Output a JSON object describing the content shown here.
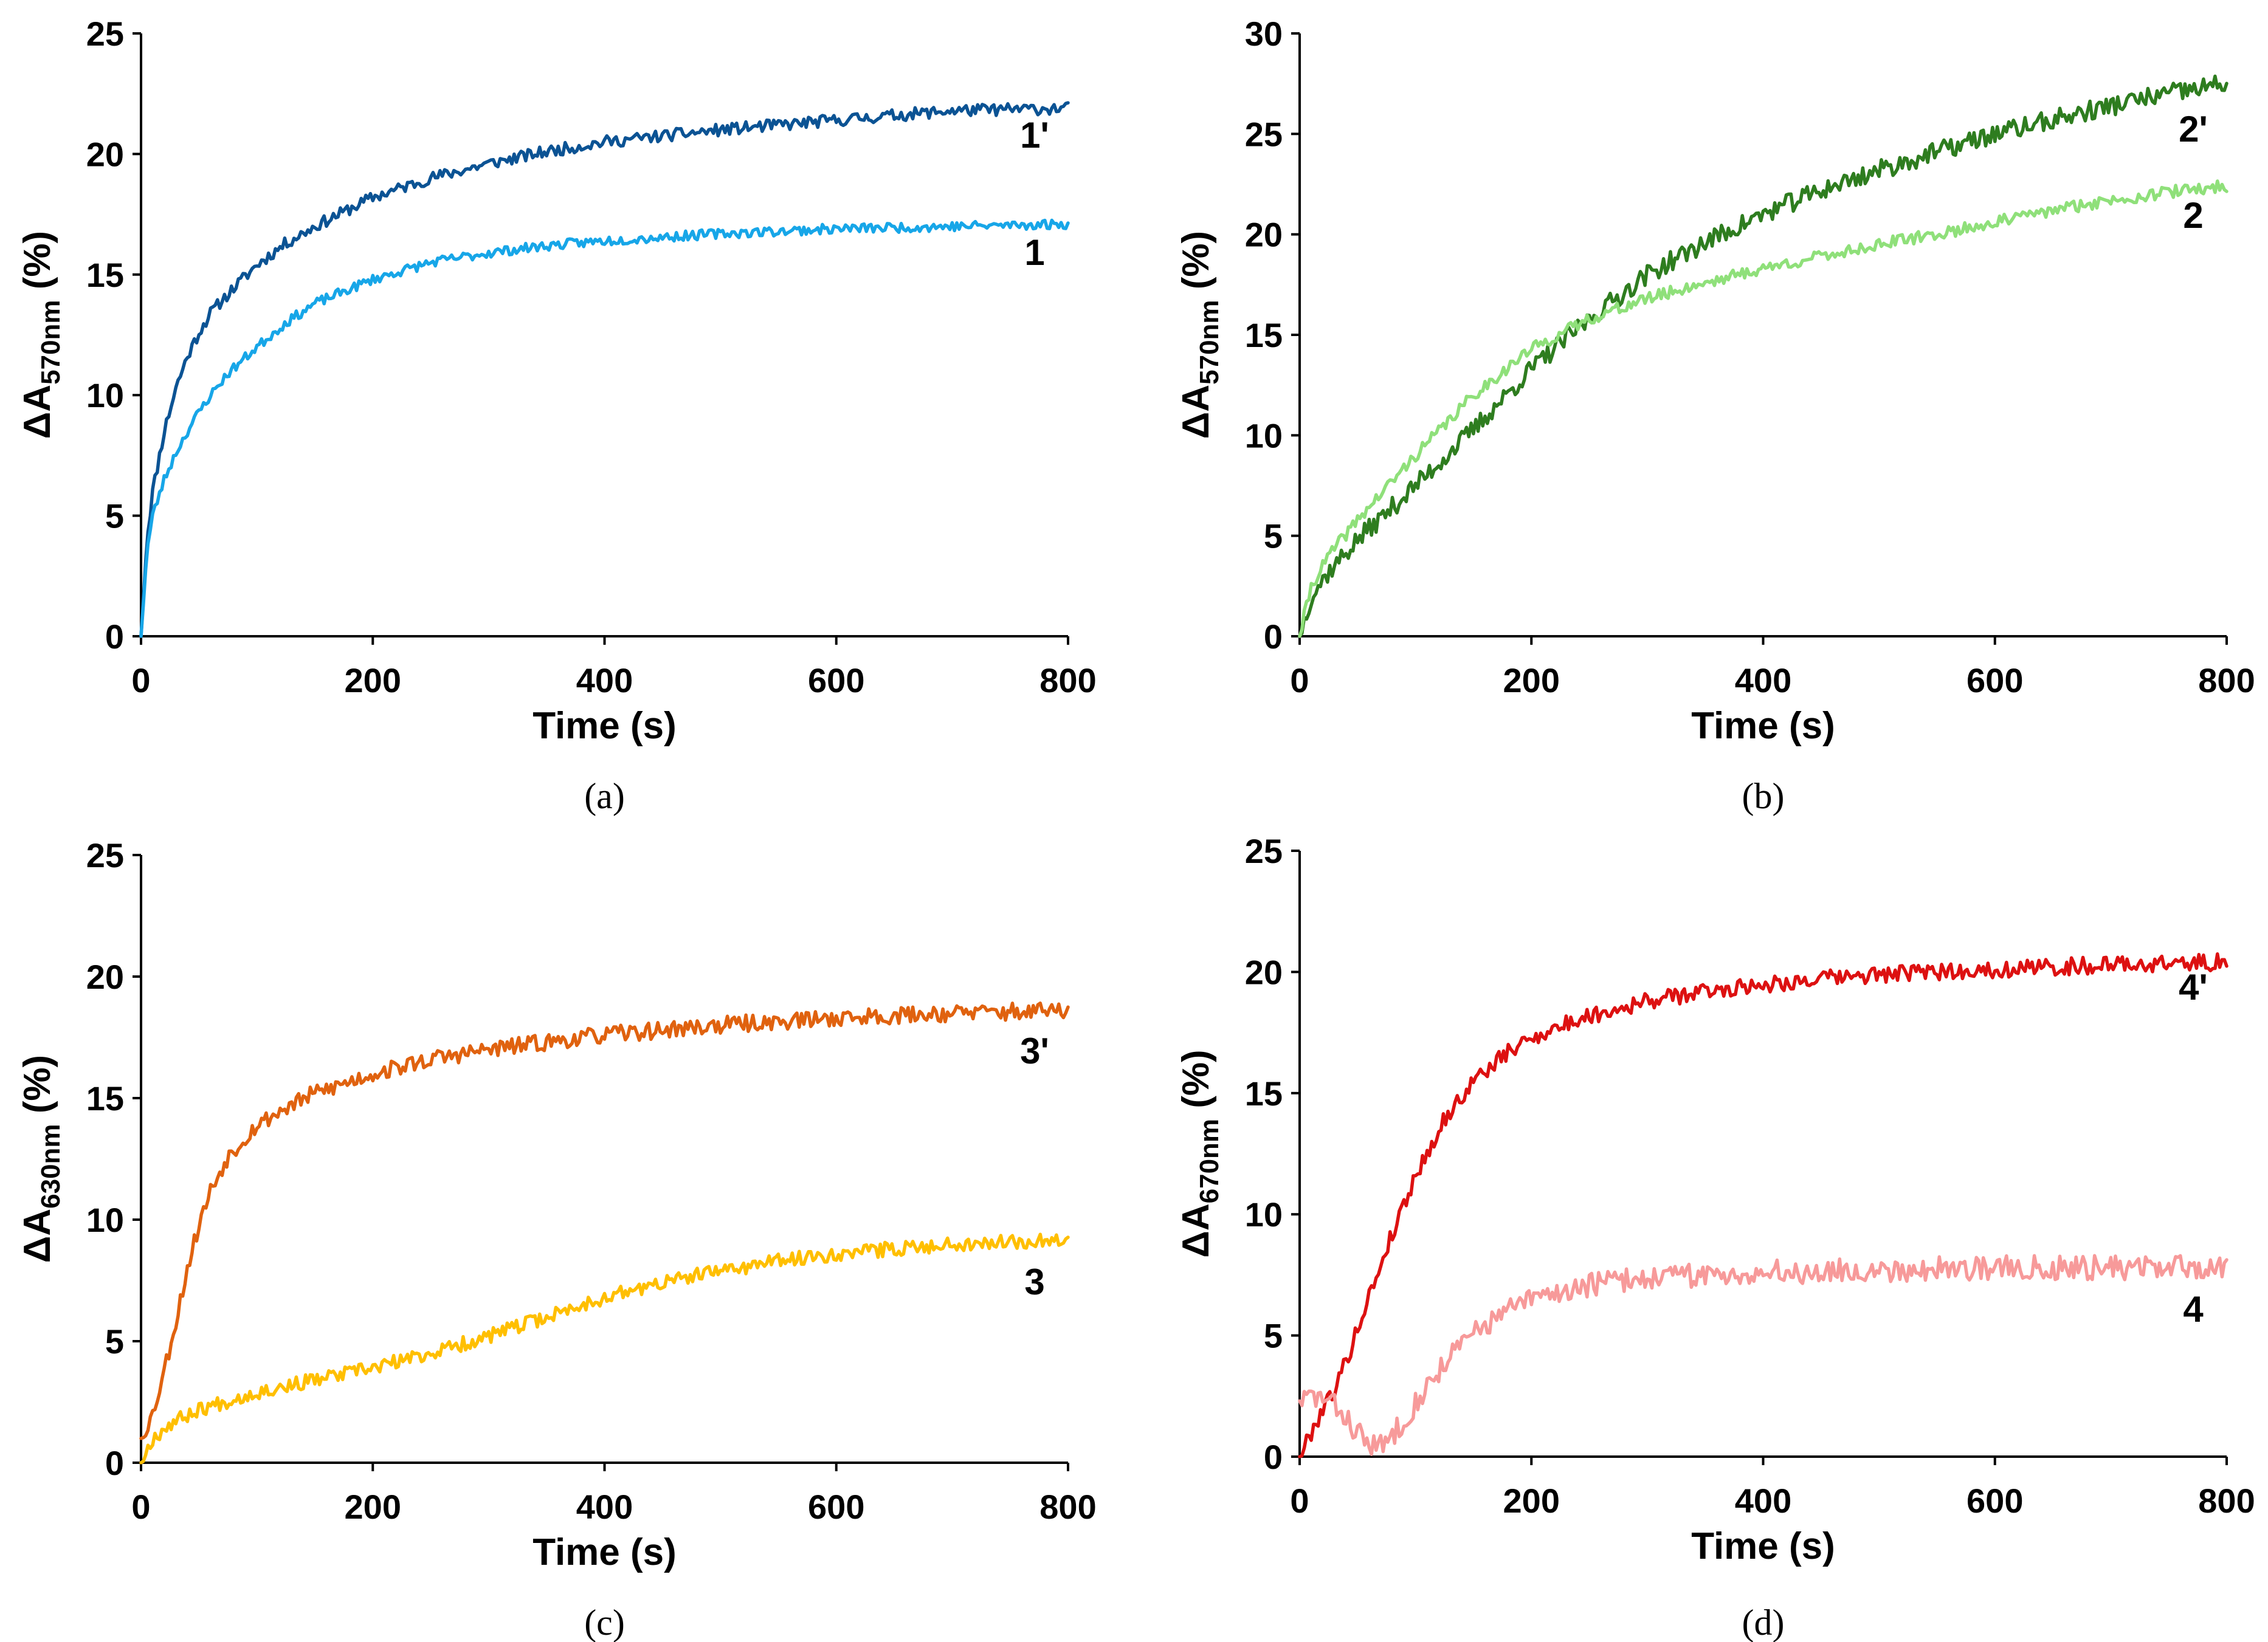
{
  "chart_data": [
    {
      "id": "a",
      "type": "line",
      "caption": "(a)",
      "xlabel": "Time (s)",
      "ylabel_main": "ΔA",
      "ylabel_sub": "570nm",
      "ylabel_unit": " (%)",
      "xlim": [
        0,
        800
      ],
      "ylim": [
        0,
        25
      ],
      "xticks": [
        "0",
        "200",
        "400",
        "600",
        "800"
      ],
      "yticks": [
        "0",
        "5",
        "10",
        "15",
        "20",
        "25"
      ],
      "grid": false,
      "series": [
        {
          "name": "1'",
          "color": "#0b5394",
          "noise": 0.25,
          "seed": 11,
          "x": [
            0,
            5,
            10,
            20,
            30,
            40,
            50,
            60,
            75,
            100,
            125,
            150,
            200,
            250,
            300,
            350,
            400,
            500,
            600,
            700,
            800
          ],
          "y": [
            0,
            4.0,
            6.0,
            8.5,
            10.3,
            11.6,
            12.6,
            13.4,
            14.2,
            15.4,
            16.3,
            17.0,
            18.2,
            19.0,
            19.6,
            20.1,
            20.5,
            21.0,
            21.4,
            21.8,
            21.9
          ]
        },
        {
          "name": "1",
          "color": "#17a6e8",
          "noise": 0.2,
          "seed": 23,
          "x": [
            0,
            5,
            10,
            20,
            30,
            40,
            50,
            60,
            75,
            100,
            125,
            150,
            200,
            250,
            300,
            350,
            400,
            500,
            600,
            700,
            800
          ],
          "y": [
            0,
            3.5,
            5.0,
            6.5,
            7.6,
            8.5,
            9.3,
            10.0,
            10.9,
            12.0,
            13.0,
            13.8,
            14.8,
            15.5,
            15.9,
            16.2,
            16.4,
            16.7,
            16.9,
            17.0,
            17.1
          ]
        }
      ],
      "annotations": [
        "1'",
        "1"
      ]
    },
    {
      "id": "b",
      "type": "line",
      "caption": "(b)",
      "xlabel": "Time (s)",
      "ylabel_main": "ΔA",
      "ylabel_sub": "570nm",
      "ylabel_unit": " (%)",
      "xlim": [
        0,
        800
      ],
      "ylim": [
        0,
        30
      ],
      "xticks": [
        "0",
        "200",
        "400",
        "600",
        "800"
      ],
      "yticks": [
        "0",
        "5",
        "10",
        "15",
        "20",
        "25",
        "30"
      ],
      "grid": false,
      "series": [
        {
          "name": "2'",
          "color": "#2e7d1f",
          "noise": 0.5,
          "seed": 37,
          "x": [
            0,
            10,
            25,
            50,
            100,
            150,
            200,
            250,
            300,
            350,
            400,
            450,
            500,
            550,
            600,
            650,
            700,
            750,
            800
          ],
          "y": [
            0,
            2.0,
            3.2,
            4.8,
            7.5,
            10.3,
            13.3,
            15.8,
            18.0,
            19.6,
            21.0,
            22.2,
            23.2,
            24.1,
            25.0,
            25.7,
            26.4,
            27.0,
            27.5
          ]
        },
        {
          "name": "2",
          "color": "#8fe07a",
          "noise": 0.3,
          "seed": 41,
          "x": [
            0,
            10,
            25,
            50,
            100,
            150,
            200,
            250,
            300,
            350,
            400,
            450,
            500,
            550,
            600,
            650,
            700,
            750,
            800
          ],
          "y": [
            0,
            2.5,
            4.0,
            5.8,
            9.0,
            12.0,
            14.3,
            15.8,
            16.8,
            17.6,
            18.3,
            18.9,
            19.5,
            20.0,
            20.6,
            21.2,
            21.7,
            22.1,
            22.4
          ]
        }
      ],
      "annotations": [
        "2'",
        "2"
      ]
    },
    {
      "id": "c",
      "type": "line",
      "caption": "(c)",
      "xlabel": "Time (s)",
      "ylabel_main": "ΔA",
      "ylabel_sub": "630nm",
      "ylabel_unit": " (%)",
      "xlim": [
        0,
        800
      ],
      "ylim": [
        0,
        25
      ],
      "xticks": [
        "0",
        "200",
        "400",
        "600",
        "800"
      ],
      "yticks": [
        "0",
        "5",
        "10",
        "15",
        "20",
        "25"
      ],
      "grid": false,
      "series": [
        {
          "name": "3'",
          "color": "#e0620f",
          "noise": 0.35,
          "seed": 53,
          "x": [
            0,
            10,
            20,
            30,
            40,
            50,
            60,
            75,
            100,
            125,
            150,
            200,
            250,
            300,
            350,
            400,
            500,
            600,
            700,
            800
          ],
          "y": [
            1.0,
            2.0,
            3.8,
            5.8,
            8.0,
            9.8,
            11.2,
            12.6,
            13.9,
            14.6,
            15.2,
            16.0,
            16.6,
            17.0,
            17.3,
            17.6,
            18.0,
            18.3,
            18.5,
            18.6
          ]
        },
        {
          "name": "3",
          "color": "#ffbf00",
          "noise": 0.3,
          "seed": 67,
          "x": [
            0,
            10,
            25,
            50,
            100,
            150,
            200,
            250,
            300,
            350,
            400,
            450,
            500,
            550,
            600,
            650,
            700,
            750,
            800
          ],
          "y": [
            0,
            1.0,
            1.6,
            2.2,
            2.9,
            3.4,
            3.9,
            4.5,
            5.2,
            6.0,
            6.8,
            7.4,
            7.9,
            8.3,
            8.6,
            8.8,
            9.0,
            9.1,
            9.2
          ]
        }
      ],
      "annotations": [
        "3'",
        "3"
      ]
    },
    {
      "id": "d",
      "type": "line",
      "caption": "(d)",
      "xlabel": "Time (s)",
      "ylabel_main": "ΔA",
      "ylabel_sub": "670nm",
      "ylabel_unit": " (%)",
      "xlim": [
        0,
        800
      ],
      "ylim": [
        0,
        25
      ],
      "xticks": [
        "0",
        "200",
        "400",
        "600",
        "800"
      ],
      "yticks": [
        "0",
        "5",
        "10",
        "15",
        "20",
        "25"
      ],
      "grid": false,
      "series": [
        {
          "name": "4'",
          "color": "#dd1111",
          "noise": 0.35,
          "seed": 79,
          "x": [
            0,
            10,
            20,
            30,
            40,
            50,
            60,
            75,
            100,
            125,
            150,
            175,
            200,
            250,
            300,
            350,
            400,
            500,
            600,
            700,
            800
          ],
          "y": [
            0,
            1.0,
            2.0,
            2.8,
            3.9,
            5.3,
            6.6,
            8.6,
            11.6,
            13.9,
            15.5,
            16.5,
            17.3,
            18.2,
            18.8,
            19.2,
            19.5,
            19.9,
            20.1,
            20.3,
            20.4
          ]
        },
        {
          "name": "4",
          "color": "#f79a9a",
          "noise": 0.5,
          "seed": 83,
          "x": [
            0,
            10,
            20,
            30,
            40,
            50,
            60,
            70,
            80,
            100,
            125,
            150,
            175,
            200,
            250,
            300,
            350,
            400,
            500,
            600,
            700,
            800
          ],
          "y": [
            2.3,
            2.5,
            2.4,
            2.1,
            1.6,
            1.0,
            0.5,
            0.4,
            0.9,
            2.2,
            3.9,
            5.1,
            5.9,
            6.5,
            7.1,
            7.4,
            7.5,
            7.6,
            7.7,
            7.8,
            7.8,
            7.8
          ]
        }
      ],
      "annotations": [
        "4'",
        "4"
      ]
    }
  ]
}
